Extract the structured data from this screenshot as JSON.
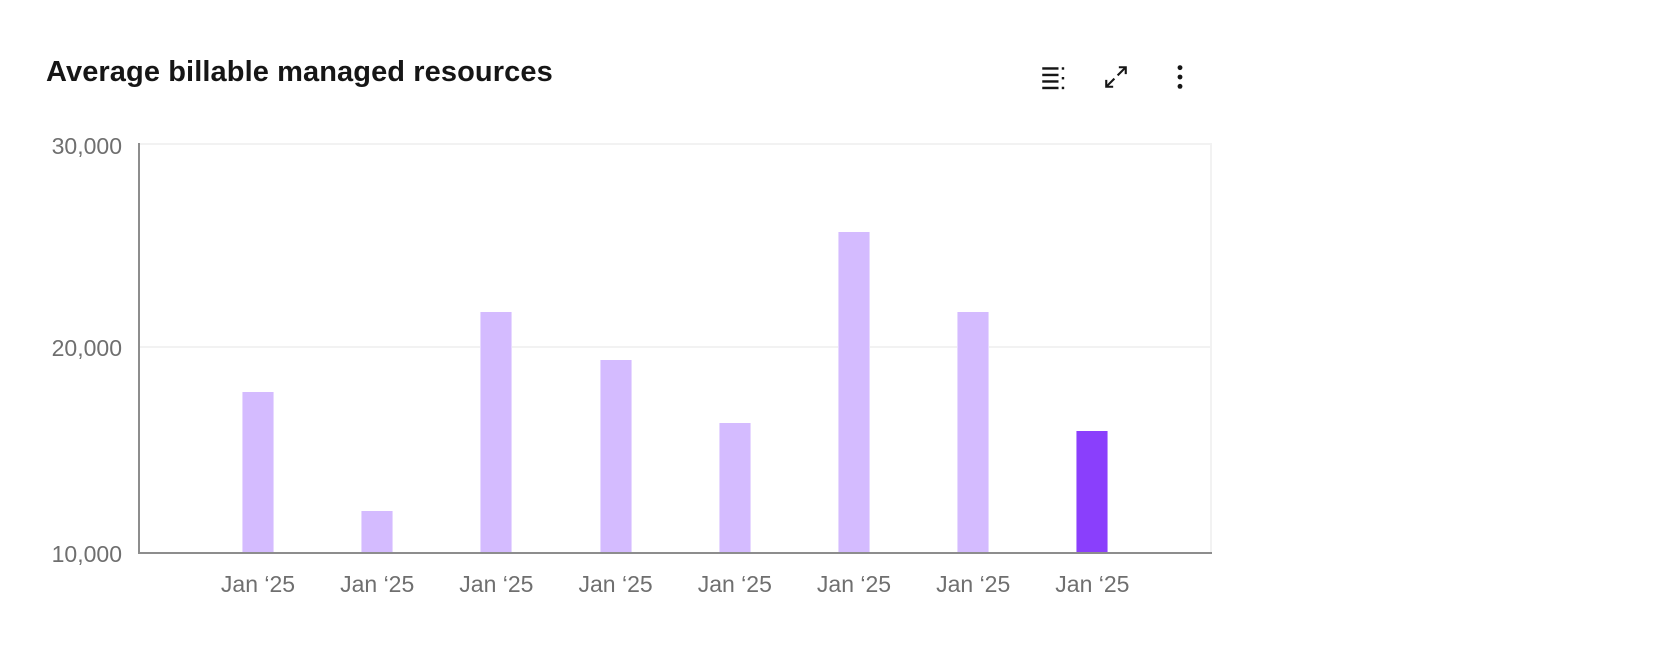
{
  "header": {
    "title": "Average billable managed resources",
    "toolbar": {
      "icons": [
        "table-of-contents-icon",
        "expand-icon",
        "overflow-menu-icon"
      ]
    }
  },
  "colors": {
    "bar_default": "#d4bbff",
    "bar_highlight": "#8a3ffc",
    "axis_line": "#8d8d8d",
    "gridline": "#f2f2f2",
    "tick_label": "#6f6f6f",
    "title": "#161616"
  },
  "chart_data": {
    "type": "bar",
    "title": "Average billable managed resources",
    "categories": [
      "Jan ‘25",
      "Jan ‘25",
      "Jan ‘25",
      "Jan ‘25",
      "Jan ‘25",
      "Jan ‘25",
      "Jan ‘25",
      "Jan ‘25"
    ],
    "values": [
      17850,
      12000,
      21750,
      19400,
      16300,
      25650,
      21750,
      15900
    ],
    "highlighted_index": 7,
    "xlabel": "",
    "ylabel": "",
    "ylim": [
      10000,
      30000
    ],
    "yticks": [
      10000,
      20000,
      30000
    ],
    "ytick_labels": [
      "10,000",
      "20,000",
      "30,000"
    ],
    "grid": "horizontal",
    "legend": "none"
  }
}
